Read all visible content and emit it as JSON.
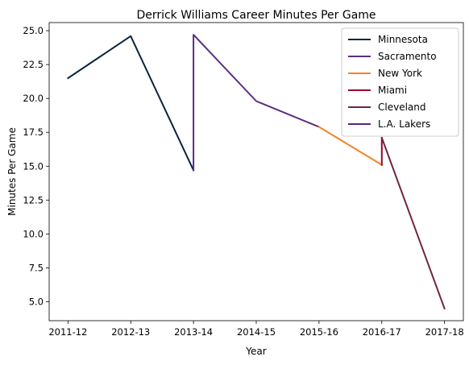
{
  "chart_data": {
    "type": "line",
    "title": "Derrick Williams  Career Minutes Per Game",
    "xlabel": "Year",
    "ylabel": "Minutes Per Game",
    "categories": [
      "2011-12",
      "2012-13",
      "2013-14",
      "2014-15",
      "2015-16",
      "2016-17",
      "2017-18"
    ],
    "ylim": [
      3.6,
      25.6
    ],
    "yticks": [
      "5.0",
      "7.5",
      "10.0",
      "12.5",
      "15.0",
      "17.5",
      "20.0",
      "22.5",
      "25.0"
    ],
    "ytick_values": [
      5.0,
      7.5,
      10.0,
      12.5,
      15.0,
      17.5,
      20.0,
      22.5,
      25.0
    ],
    "grid": false,
    "legend_position": "top-right",
    "series": [
      {
        "name": "Minnesota",
        "color": "#0c2340",
        "points": [
          [
            0,
            21.5
          ],
          [
            1,
            24.6
          ],
          [
            2,
            14.7
          ]
        ]
      },
      {
        "name": "Sacramento",
        "color": "#5a2d81",
        "points": [
          [
            2,
            14.7
          ],
          [
            2,
            24.7
          ],
          [
            3,
            19.8
          ],
          [
            4,
            17.9
          ]
        ]
      },
      {
        "name": "New York",
        "color": "#f58426",
        "points": [
          [
            4,
            17.9
          ],
          [
            5,
            15.1
          ]
        ]
      },
      {
        "name": "Miami",
        "color": "#98002e",
        "points": [
          [
            5,
            15.1
          ],
          [
            5,
            17.1
          ]
        ]
      },
      {
        "name": "Cleveland",
        "color": "#6f263d",
        "points": [
          [
            5,
            17.1
          ],
          [
            6,
            4.5
          ]
        ]
      },
      {
        "name": "L.A. Lakers",
        "color": "#552583",
        "points": []
      }
    ]
  }
}
